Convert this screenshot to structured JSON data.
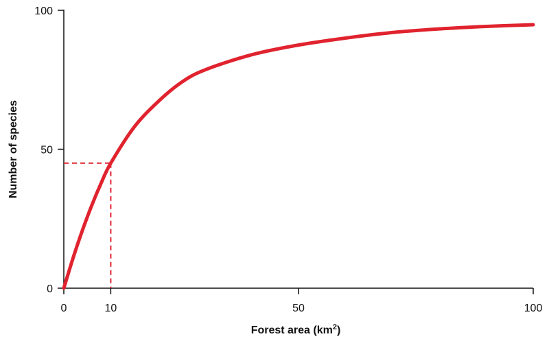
{
  "chart_data": {
    "type": "line",
    "title": "",
    "xlabel": "Forest area (km",
    "xlabel_superscript": "2",
    "xlabel_suffix": ")",
    "ylabel": "Number of species",
    "xlim": [
      0,
      100
    ],
    "ylim": [
      0,
      100
    ],
    "x_ticks": [
      0,
      10,
      50,
      100
    ],
    "y_ticks": [
      0,
      50,
      100
    ],
    "grid": false,
    "series": [
      {
        "color": "#e0232e",
        "x": [
          0,
          2,
          4,
          6,
          8,
          10,
          15,
          20,
          25,
          30,
          40,
          50,
          60,
          70,
          80,
          90,
          100
        ],
        "y": [
          0,
          11,
          21,
          30,
          38,
          45,
          58,
          67,
          74,
          78.5,
          84,
          87.5,
          90,
          92,
          93.3,
          94.2,
          94.8
        ]
      }
    ],
    "annotation": {
      "color": "#e0232e",
      "style": "dashed",
      "x": 10,
      "y": 45
    },
    "axis_color": "#111111"
  }
}
